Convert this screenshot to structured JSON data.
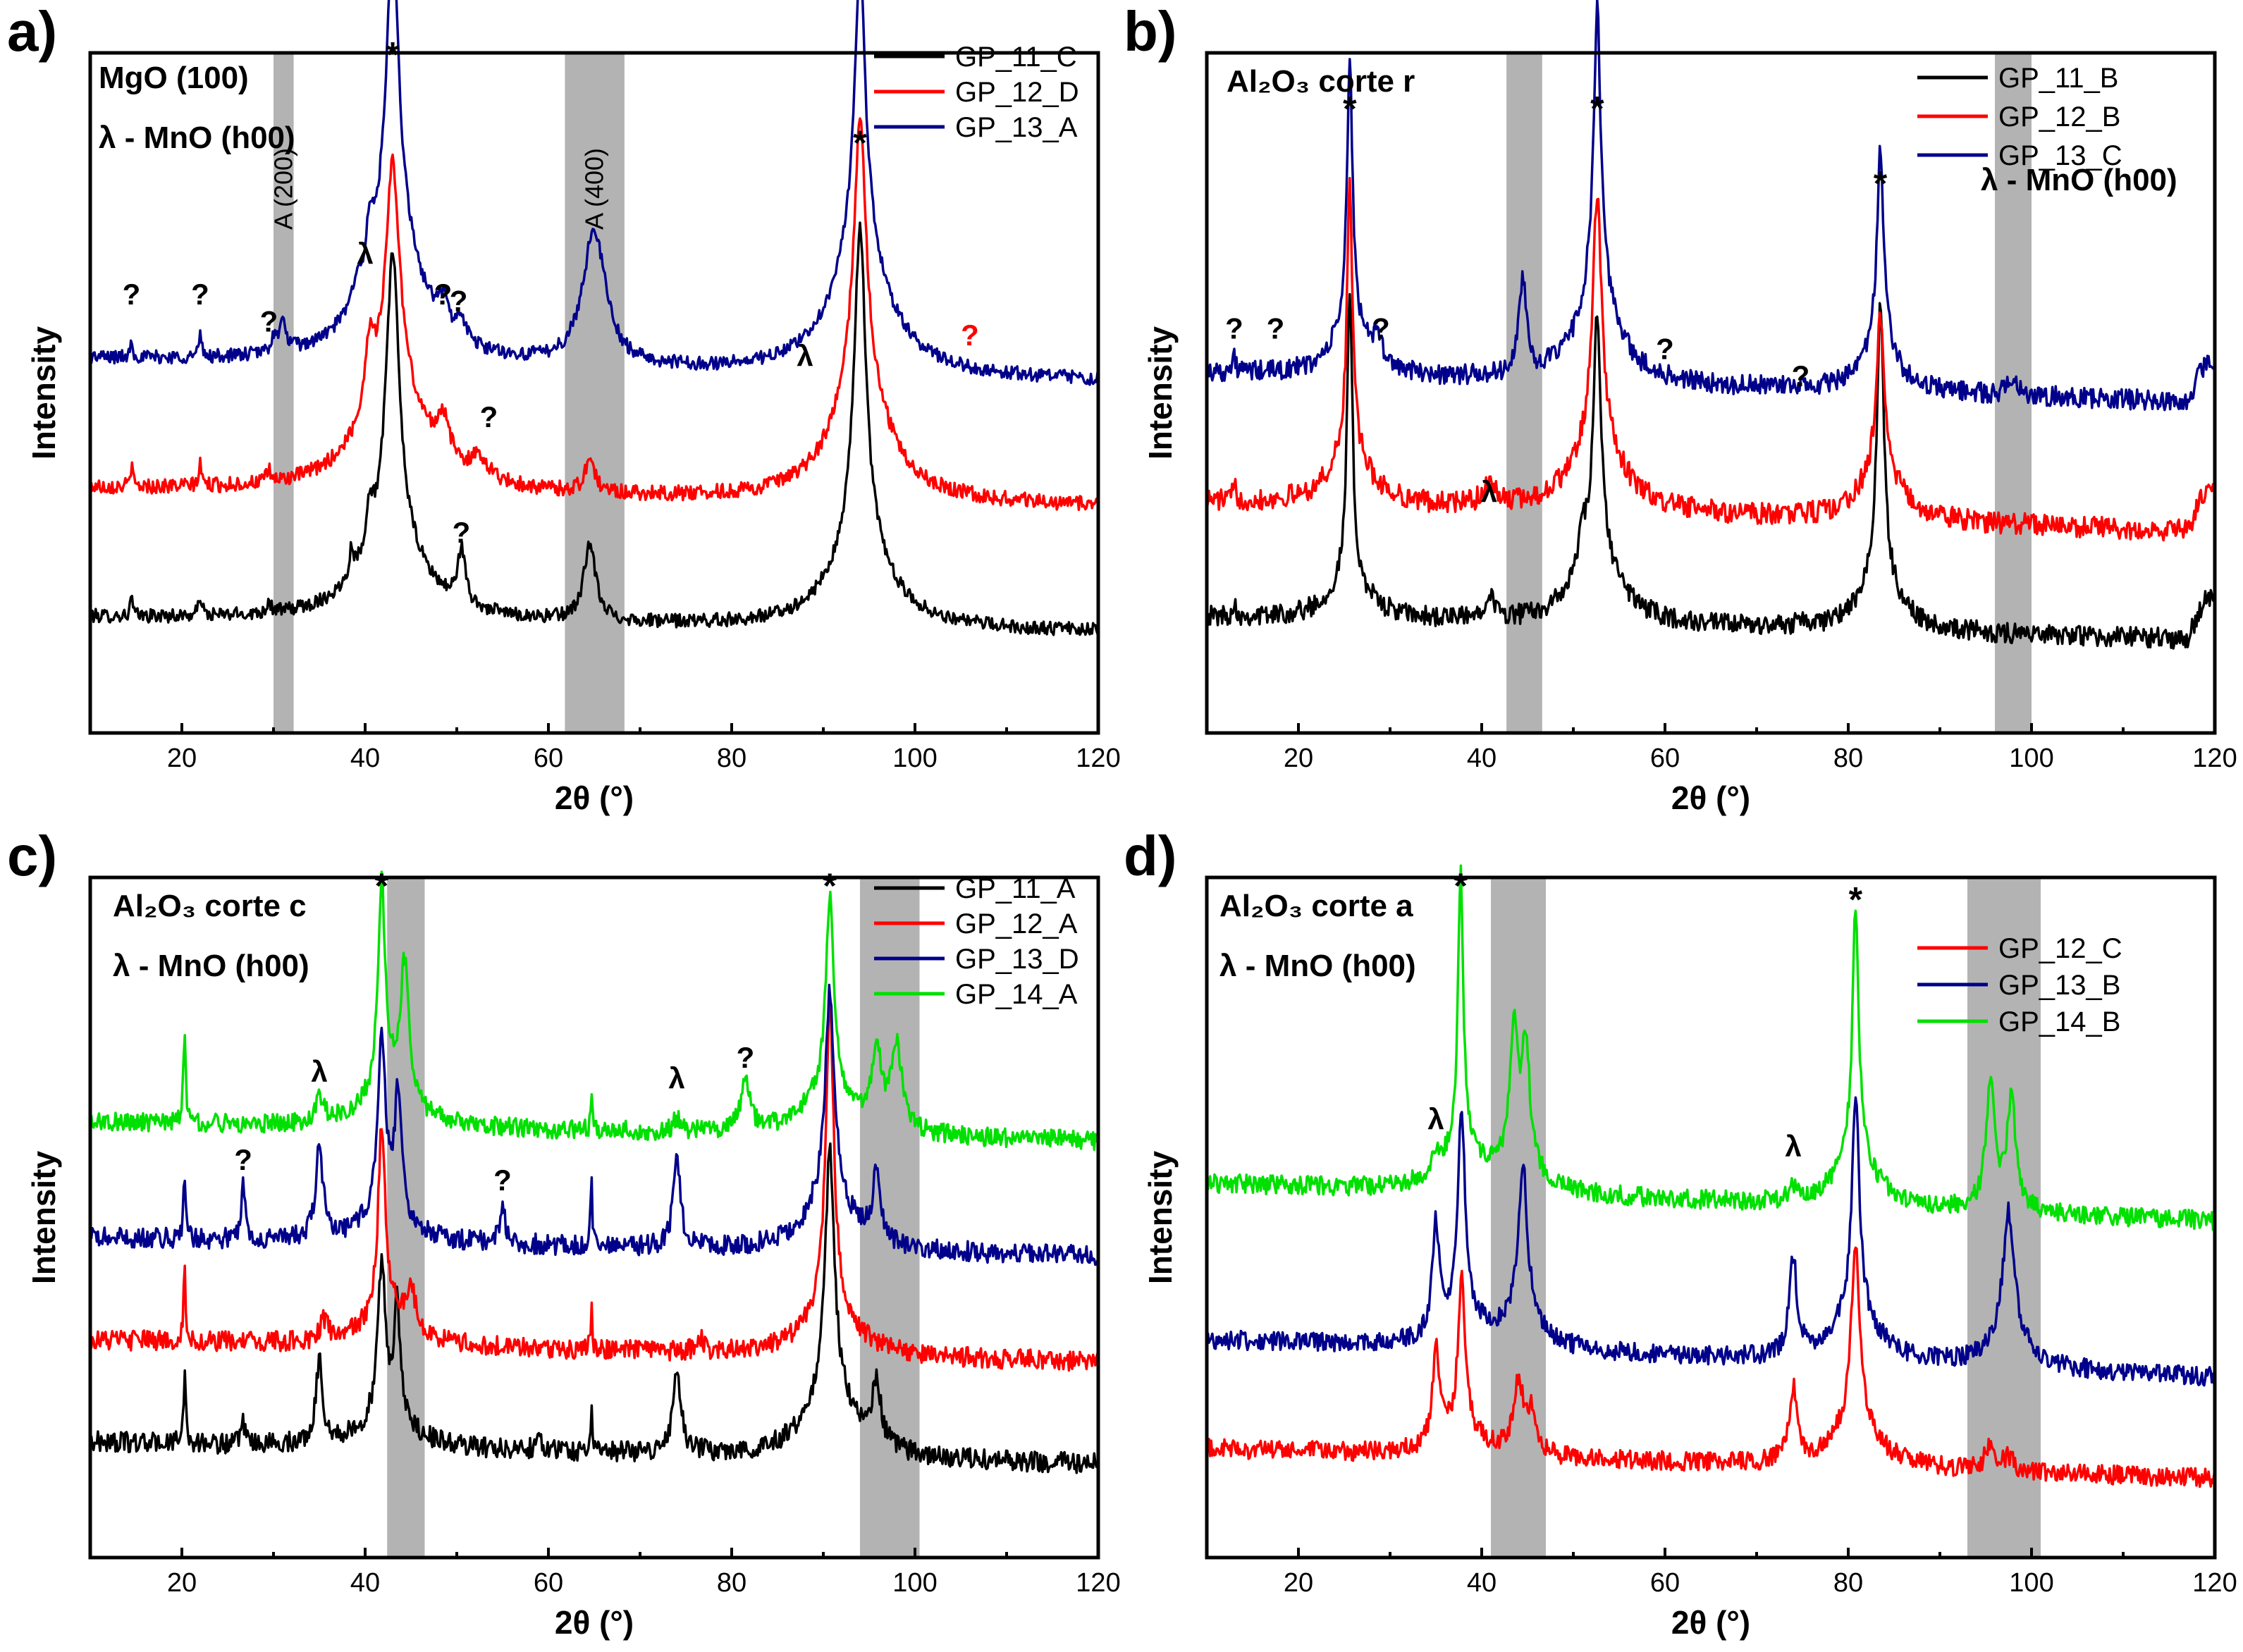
{
  "figure": {
    "axis_common": {
      "xlabel": "2θ (°)",
      "ylabel": "Intensity",
      "xlim": [
        10,
        120
      ],
      "xticks": [
        20,
        40,
        60,
        80,
        100,
        120
      ]
    },
    "colors": {
      "black": "#000000",
      "red": "#ff0000",
      "blue": "#00008b",
      "green": "#00e000",
      "band": "#b3b3b3"
    }
  },
  "chart_data": [
    {
      "panel": "a)",
      "type": "line",
      "title_lines": [
        "MgO (100)",
        "λ - MnO (h00)"
      ],
      "xlabel": "2θ (°)",
      "ylabel": "Intensity",
      "xlim": [
        10,
        120
      ],
      "ylim": [
        0,
        100
      ],
      "shaded_bands": [
        {
          "x0": 30.0,
          "x1": 32.2,
          "label": "A (200)"
        },
        {
          "x0": 61.8,
          "x1": 68.3,
          "label": "A (400)"
        }
      ],
      "series": [
        {
          "name": "GP_11_C",
          "color": "#000000",
          "baseline": 17,
          "slope": -0.02,
          "noise": 1.0,
          "tail": 0,
          "peaks": [
            [
              14.5,
              3,
              0.15
            ],
            [
              22,
              3,
              0.2
            ],
            [
              29.5,
              1.5,
              0.3
            ],
            [
              38.5,
              4,
              0.3
            ],
            [
              40.5,
              6,
              0.5
            ],
            [
              43,
              42,
              0.85
            ],
            [
              43,
              12,
              4
            ],
            [
              50.5,
              8,
              0.5
            ],
            [
              64.5,
              11,
              0.8
            ],
            [
              94,
              45,
              0.75
            ],
            [
              94,
              14,
              3.5
            ]
          ]
        },
        {
          "name": "GP_12_D",
          "color": "#ff0000",
          "baseline": 36,
          "slope": -0.025,
          "noise": 1.1,
          "tail": 0,
          "peaks": [
            [
              14.5,
              3,
              0.15
            ],
            [
              22,
              3,
              0.2
            ],
            [
              29.5,
              1.5,
              0.3
            ],
            [
              40.5,
              10,
              0.6
            ],
            [
              43,
              32,
              0.9
            ],
            [
              43,
              16,
              4
            ],
            [
              48.5,
              6,
              0.8
            ],
            [
              52.5,
              3,
              1.2
            ],
            [
              64.5,
              5,
              0.6
            ],
            [
              94,
              38,
              0.8
            ],
            [
              94,
              18,
              3.5
            ]
          ]
        },
        {
          "name": "GP_13_A",
          "color": "#00008b",
          "baseline": 55,
          "slope": -0.03,
          "noise": 1.0,
          "tail": 0,
          "peaks": [
            [
              14.5,
              3,
              0.15
            ],
            [
              22,
              3,
              0.2
            ],
            [
              30,
              2,
              0.3
            ],
            [
              31,
              4,
              0.5
            ],
            [
              39,
              3,
              0.4
            ],
            [
              40.5,
              6,
              0.5
            ],
            [
              43,
              42,
              0.8
            ],
            [
              43,
              20,
              3.5
            ],
            [
              48.5,
              4,
              0.7
            ],
            [
              50.5,
              3,
              0.6
            ],
            [
              65,
              20,
              1.5
            ],
            [
              94,
              40,
              0.7
            ],
            [
              94,
              20,
              3.5
            ]
          ]
        }
      ],
      "annotations": [
        {
          "text": "?",
          "x": 14.5,
          "y": 63
        },
        {
          "text": "?",
          "x": 22,
          "y": 63
        },
        {
          "text": "?",
          "x": 29.5,
          "y": 59
        },
        {
          "text": "λ",
          "x": 40,
          "y": 69
        },
        {
          "text": "?",
          "x": 48.5,
          "y": 63
        },
        {
          "text": "?",
          "x": 50.2,
          "y": 62
        },
        {
          "text": "?",
          "x": 53.5,
          "y": 45
        },
        {
          "text": "?",
          "x": 50.5,
          "y": 28
        },
        {
          "text": "λ",
          "x": 88,
          "y": 54
        },
        {
          "text": "?",
          "x": 106,
          "y": 57,
          "color": "#ff0000"
        }
      ],
      "stars": [
        {
          "text": "*",
          "x": 43,
          "y": 98
        },
        {
          "text": "*",
          "x": 94,
          "y": 85
        }
      ]
    },
    {
      "panel": "b)",
      "type": "line",
      "title_lines": [
        "Al₂O₃ corte r",
        "λ - MnO (h00)"
      ],
      "xlabel": "2θ (°)",
      "ylabel": "Intensity",
      "xlim": [
        10,
        120
      ],
      "ylim": [
        0,
        100
      ],
      "shaded_bands": [
        {
          "x0": 42.7,
          "x1": 46.6,
          "label": ""
        },
        {
          "x0": 96.0,
          "x1": 100.0,
          "label": ""
        }
      ],
      "series": [
        {
          "name": "GP_11_B",
          "color": "#000000",
          "baseline": 17,
          "slope": -0.03,
          "noise": 1.5,
          "tail": 6,
          "peaks": [
            [
              13,
              2,
              0.2
            ],
            [
              25.6,
              42,
              0.35
            ],
            [
              25.6,
              6,
              2.5
            ],
            [
              40.8,
              4,
              0.6
            ],
            [
              51,
              5,
              0.6
            ],
            [
              52.6,
              35,
              0.5
            ],
            [
              52.6,
              10,
              3
            ],
            [
              74.6,
              2,
              0.3
            ],
            [
              83.5,
              40,
              0.45
            ],
            [
              83.5,
              8,
              2.5
            ]
          ]
        },
        {
          "name": "GP_12_B",
          "color": "#ff0000",
          "baseline": 34,
          "slope": -0.04,
          "noise": 1.6,
          "tail": 6,
          "peaks": [
            [
              13,
              2,
              0.2
            ],
            [
              25.6,
              40,
              0.35
            ],
            [
              25.6,
              8,
              2.5
            ],
            [
              40.8,
              3,
              0.8
            ],
            [
              52.6,
              35,
              0.55
            ],
            [
              52.6,
              12,
              3
            ],
            [
              83.5,
              22,
              0.5
            ],
            [
              83.5,
              8,
              2.5
            ]
          ]
        },
        {
          "name": "GP_13_C",
          "color": "#00008b",
          "baseline": 53,
          "slope": -0.04,
          "noise": 1.5,
          "tail": 6,
          "peaks": [
            [
              13,
              2,
              0.2
            ],
            [
              25.6,
              38,
              0.35
            ],
            [
              25.6,
              8,
              2
            ],
            [
              28.5,
              3,
              1
            ],
            [
              44.5,
              14,
              0.5
            ],
            [
              52.6,
              40,
              0.45
            ],
            [
              52.6,
              15,
              2.5
            ],
            [
              83.5,
              28,
              0.4
            ],
            [
              83.5,
              8,
              2
            ],
            [
              98,
              3,
              0.6
            ]
          ]
        }
      ],
      "annotations": [
        {
          "text": "?",
          "x": 13,
          "y": 58
        },
        {
          "text": "?",
          "x": 17.5,
          "y": 58
        },
        {
          "text": "?",
          "x": 29,
          "y": 58
        },
        {
          "text": "?",
          "x": 60,
          "y": 55
        },
        {
          "text": "?",
          "x": 74.8,
          "y": 51
        },
        {
          "text": "λ",
          "x": 40.8,
          "y": 34
        }
      ],
      "stars": [
        {
          "text": "*",
          "x": 25.6,
          "y": 90
        },
        {
          "text": "*",
          "x": 52.6,
          "y": 90
        },
        {
          "text": "*",
          "x": 83.5,
          "y": 79
        }
      ]
    },
    {
      "panel": "c)",
      "type": "line",
      "title_lines": [
        "Al₂O₃ corte c",
        "λ - MnO (h00)"
      ],
      "xlabel": "2θ (°)",
      "ylabel": "Intensity",
      "xlim": [
        10,
        120
      ],
      "ylim": [
        0,
        100
      ],
      "shaded_bands": [
        {
          "x0": 42.4,
          "x1": 46.5,
          "label": ""
        },
        {
          "x0": 94.0,
          "x1": 100.5,
          "label": ""
        }
      ],
      "series": [
        {
          "name": "GP_11_A",
          "color": "#000000",
          "baseline": 17,
          "slope": -0.03,
          "noise": 1.5,
          "tail": 0,
          "peaks": [
            [
              20.3,
              10,
              0.15
            ],
            [
              26.7,
              3,
              0.2
            ],
            [
              35,
              12,
              0.45
            ],
            [
              41.8,
              22,
              0.5
            ],
            [
              43.5,
              16,
              0.4
            ],
            [
              42.5,
              5,
              3
            ],
            [
              59,
              2,
              0.4
            ],
            [
              64.7,
              6,
              0.12
            ],
            [
              74,
              13,
              0.5
            ],
            [
              90.7,
              35,
              0.6
            ],
            [
              90.7,
              10,
              3
            ],
            [
              95.8,
              9,
              0.6
            ]
          ]
        },
        {
          "name": "GP_12_A",
          "color": "#ff0000",
          "baseline": 32,
          "slope": -0.03,
          "noise": 1.5,
          "tail": 0,
          "peaks": [
            [
              20.3,
              10,
              0.15
            ],
            [
              35.5,
              3,
              0.5
            ],
            [
              41.8,
              28,
              0.45
            ],
            [
              45,
              6,
              0.6
            ],
            [
              42.5,
              5,
              3
            ],
            [
              64.7,
              6,
              0.12
            ],
            [
              76.5,
              2,
              0.4
            ],
            [
              90.7,
              45,
              0.5
            ],
            [
              90.7,
              8,
              3
            ]
          ]
        },
        {
          "name": "GP_13_D",
          "color": "#00008b",
          "baseline": 47,
          "slope": -0.025,
          "noise": 1.5,
          "tail": 0,
          "peaks": [
            [
              20.3,
              10,
              0.15
            ],
            [
              26.7,
              8,
              0.25
            ],
            [
              35,
              14,
              0.45
            ],
            [
              41.8,
              26,
              0.5
            ],
            [
              43.6,
              18,
              0.4
            ],
            [
              42.5,
              5,
              3
            ],
            [
              55,
              6,
              0.3
            ],
            [
              64.7,
              9,
              0.12
            ],
            [
              74,
              14,
              0.45
            ],
            [
              90.7,
              30,
              0.6
            ],
            [
              90.7,
              8,
              3
            ],
            [
              95.8,
              10,
              0.5
            ]
          ]
        },
        {
          "name": "GP_14_A",
          "color": "#00e000",
          "baseline": 64,
          "slope": -0.025,
          "noise": 1.4,
          "tail": 0,
          "peaks": [
            [
              20.3,
              14,
              0.15
            ],
            [
              35,
              4,
              0.45
            ],
            [
              41.8,
              30,
              0.45
            ],
            [
              44.3,
              20,
              0.55
            ],
            [
              42.5,
              6,
              3
            ],
            [
              64.7,
              4,
              0.12
            ],
            [
              74,
              2,
              0.4
            ],
            [
              81.5,
              7,
              0.6
            ],
            [
              90.7,
              28,
              0.5
            ],
            [
              90.7,
              7,
              3
            ],
            [
              95.8,
              12,
              0.6
            ],
            [
              98,
              12,
              0.7
            ]
          ]
        }
      ],
      "annotations": [
        {
          "text": "λ",
          "x": 35,
          "y": 70
        },
        {
          "text": "?",
          "x": 26.7,
          "y": 57
        },
        {
          "text": "?",
          "x": 55,
          "y": 54
        },
        {
          "text": "λ",
          "x": 74,
          "y": 69
        },
        {
          "text": "?",
          "x": 81.5,
          "y": 72
        }
      ],
      "stars": [
        {
          "text": "*",
          "x": 41.8,
          "y": 97
        },
        {
          "text": "*",
          "x": 90.7,
          "y": 97
        }
      ]
    },
    {
      "panel": "d)",
      "type": "line",
      "title_lines": [
        "Al₂O₃ corte a",
        "λ - MnO (h00)"
      ],
      "xlabel": "2θ (°)",
      "ylabel": "Intensity",
      "xlim": [
        10,
        120
      ],
      "ylim": [
        0,
        100
      ],
      "shaded_bands": [
        {
          "x0": 41.0,
          "x1": 47.0,
          "label": ""
        },
        {
          "x0": 93.0,
          "x1": 101.0,
          "label": ""
        }
      ],
      "series": [
        {
          "name": "GP_12_C",
          "color": "#ff0000",
          "baseline": 16,
          "slope": -0.04,
          "noise": 1.4,
          "tail": 0,
          "peaks": [
            [
              35,
              14,
              0.45
            ],
            [
              37.8,
              22,
              0.45
            ],
            [
              37.8,
              4,
              2.5
            ],
            [
              44,
              10,
              0.7
            ],
            [
              45.5,
              6,
              0.6
            ],
            [
              74,
              11,
              0.5
            ],
            [
              80.8,
              26,
              0.6
            ],
            [
              80.8,
              6,
              3
            ],
            [
              95.5,
              4,
              0.6
            ],
            [
              97.5,
              2,
              0.6
            ]
          ]
        },
        {
          "name": "GP_13_B",
          "color": "#00008b",
          "baseline": 32,
          "slope": -0.05,
          "noise": 1.4,
          "tail": 0,
          "peaks": [
            [
              35,
              16,
              0.45
            ],
            [
              37.8,
              30,
              0.45
            ],
            [
              37.8,
              5,
              2.5
            ],
            [
              44.5,
              22,
              0.55
            ],
            [
              44.5,
              5,
              2.5
            ],
            [
              74,
              14,
              0.5
            ],
            [
              80.8,
              32,
              0.5
            ],
            [
              80.8,
              7,
              3
            ],
            [
              97.5,
              18,
              0.7
            ],
            [
              97.5,
              5,
              2.5
            ]
          ]
        },
        {
          "name": "GP_14_B",
          "color": "#00e000",
          "baseline": 55,
          "slope": -0.05,
          "noise": 1.4,
          "tail": 0,
          "peaks": [
            [
              35,
              3,
              0.5
            ],
            [
              37.7,
              40,
              0.35
            ],
            [
              37.7,
              6,
              2.5
            ],
            [
              43.5,
              20,
              0.5
            ],
            [
              44.8,
              18,
              0.5
            ],
            [
              44,
              4,
              3
            ],
            [
              74,
              2,
              0.5
            ],
            [
              80.8,
              36,
              0.4
            ],
            [
              80.8,
              8,
              2.5
            ],
            [
              95.5,
              18,
              0.6
            ],
            [
              97.8,
              16,
              0.6
            ]
          ]
        }
      ],
      "annotations": [
        {
          "text": "λ",
          "x": 35,
          "y": 63
        },
        {
          "text": "λ",
          "x": 74,
          "y": 59
        }
      ],
      "stars": [
        {
          "text": "*",
          "x": 37.7,
          "y": 97
        },
        {
          "text": "*",
          "x": 80.8,
          "y": 95
        }
      ]
    }
  ]
}
